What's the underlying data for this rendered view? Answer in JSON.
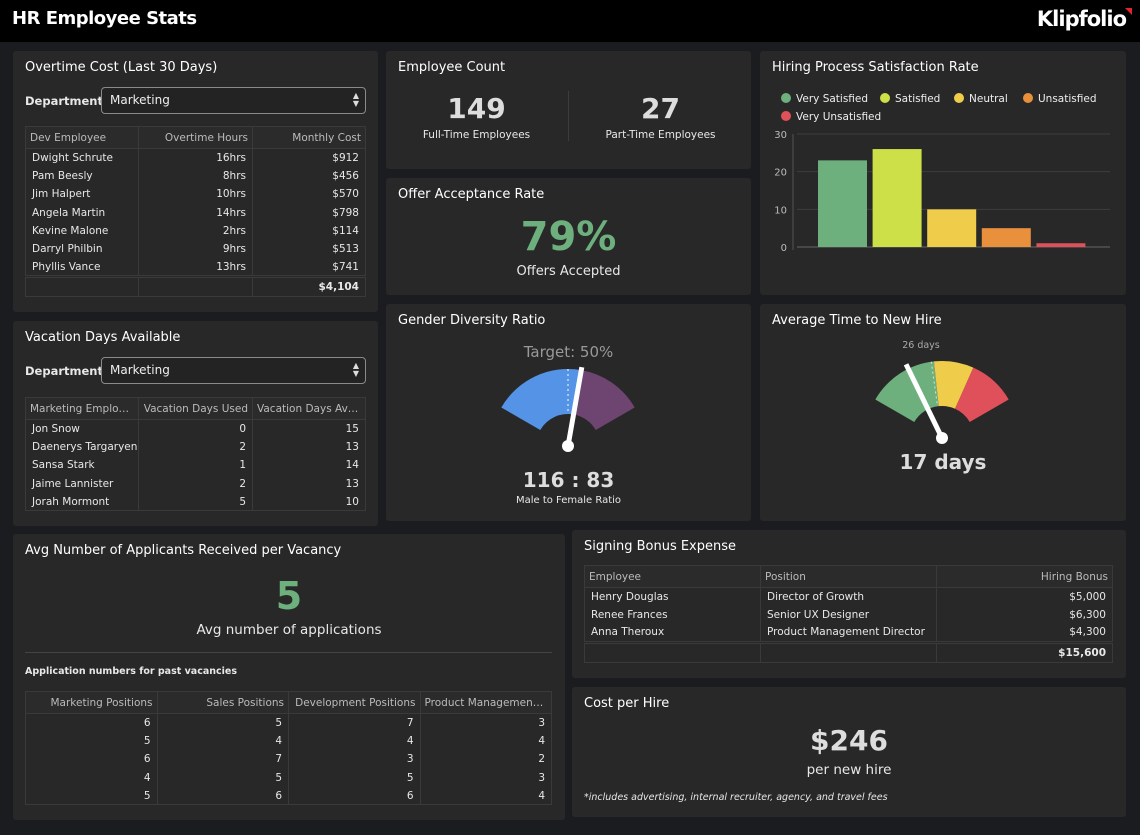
{
  "header": {
    "title": "HR Employee Stats",
    "logo": "Klipfolio"
  },
  "overtime": {
    "title": "Overtime Cost (Last 30 Days)",
    "dept_label": "Department:",
    "dept_value": "Marketing",
    "columns": [
      "Dev Employee",
      "Overtime Hours",
      "Monthly Cost"
    ],
    "rows": [
      [
        "Dwight Schrute",
        "16hrs",
        "$912"
      ],
      [
        "Pam Beesly",
        "8hrs",
        "$456"
      ],
      [
        "Jim Halpert",
        "10hrs",
        "$570"
      ],
      [
        "Angela Martin",
        "14hrs",
        "$798"
      ],
      [
        "Kevine Malone",
        "2hrs",
        "$114"
      ],
      [
        "Darryl Philbin",
        "9hrs",
        "$513"
      ],
      [
        "Phyllis Vance",
        "13hrs",
        "$741"
      ]
    ],
    "total": "$4,104"
  },
  "vacation": {
    "title": "Vacation Days Available",
    "dept_label": "Department:",
    "dept_value": "Marketing",
    "columns": [
      "Marketing Employee",
      "Vacation Days Used",
      "Vacation Days Availa..."
    ],
    "rows": [
      [
        "Jon Snow",
        "0",
        "15"
      ],
      [
        "Daenerys Targaryen",
        "2",
        "13"
      ],
      [
        "Sansa Stark",
        "1",
        "14"
      ],
      [
        "Jaime Lannister",
        "2",
        "13"
      ],
      [
        "Jorah Mormont",
        "5",
        "10"
      ]
    ]
  },
  "employee_count": {
    "title": "Employee Count",
    "full_time": "149",
    "full_time_label": "Full-Time Employees",
    "part_time": "27",
    "part_time_label": "Part-Time Employees"
  },
  "offer": {
    "title": "Offer Acceptance Rate",
    "value": "79%",
    "label": "Offers Accepted"
  },
  "gender": {
    "title": "Gender Diversity Ratio",
    "target_label": "Target: 50%",
    "target_pct": 50,
    "male": 116,
    "female": 83,
    "ratio": "116 : 83",
    "ratio_label": "Male to Female Ratio",
    "colors": {
      "male": "#5593e6",
      "female": "#6e4470"
    }
  },
  "hiring": {
    "title": "Hiring Process Satisfaction Rate",
    "chart_data": {
      "type": "bar",
      "categories": [
        "Very Satisfied",
        "Satisfied",
        "Neutral",
        "Unsatisfied",
        "Very Unsatisfied"
      ],
      "values": [
        23,
        26,
        10,
        5,
        1
      ],
      "colors": [
        "#6db07d",
        "#cde047",
        "#efcd4a",
        "#e8903c",
        "#e0505a"
      ],
      "ylim": [
        0,
        30
      ],
      "yticks": [
        "0",
        "10",
        "20",
        "30"
      ],
      "grid": true,
      "legend": "top"
    }
  },
  "time_to_hire": {
    "title": "Average Time to New Hire",
    "value": 17,
    "value_label": "17 days",
    "target": 26,
    "target_label": "26 days",
    "range": [
      0,
      60
    ],
    "bands": [
      {
        "to": 27,
        "color": "#6db07d"
      },
      {
        "to": 42,
        "color": "#efcd4a"
      },
      {
        "to": 60,
        "color": "#e0505a"
      }
    ]
  },
  "applicants": {
    "title": "Avg Number of Applicants Received per Vacancy",
    "value": "5",
    "label": "Avg number of applications",
    "table_title": "Application numbers for past vacancies",
    "columns": [
      "Marketing Positions",
      "Sales Positions",
      "Development Positions",
      "Product Management Po..."
    ],
    "rows": [
      [
        "6",
        "5",
        "7",
        "3"
      ],
      [
        "5",
        "4",
        "4",
        "4"
      ],
      [
        "6",
        "7",
        "3",
        "2"
      ],
      [
        "4",
        "5",
        "5",
        "3"
      ],
      [
        "5",
        "6",
        "6",
        "4"
      ]
    ]
  },
  "signing": {
    "title": "Signing Bonus Expense",
    "columns": [
      "Employee",
      "Position",
      "Hiring Bonus"
    ],
    "rows": [
      [
        "Henry Douglas",
        "Director of Growth",
        "$5,000"
      ],
      [
        "Renee Frances",
        "Senior UX Designer",
        "$6,300"
      ],
      [
        "Anna Theroux",
        "Product Management Director",
        "$4,300"
      ]
    ],
    "total": "$15,600"
  },
  "cost_per_hire": {
    "title": "Cost per Hire",
    "value": "$246",
    "label": "per new hire",
    "note": "*includes advertising, internal recruiter, agency, and travel fees"
  },
  "accent_green": "#6db07d"
}
